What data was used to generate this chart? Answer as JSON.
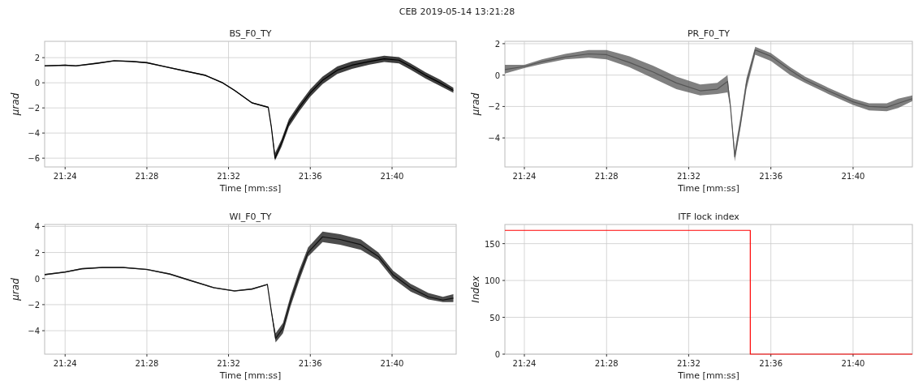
{
  "chart_data": [
    {
      "type": "line",
      "title": "BS_F0_TY",
      "xlabel": "Time [mm:ss]",
      "ylabel": "μrad",
      "annotations": [
        "CEB 2019-05-14 13:21:28"
      ],
      "grid": true,
      "xlim": [
        21.3833,
        21.719
      ],
      "xticks": [
        {
          "value": 21.4,
          "label": "21:24"
        },
        {
          "value": 21.4667,
          "label": "21:28"
        },
        {
          "value": 21.5333,
          "label": "21:32"
        },
        {
          "value": 21.6,
          "label": "21:36"
        },
        {
          "value": 21.6667,
          "label": "21:40"
        }
      ],
      "ylim": [
        -6.7,
        3.3
      ],
      "yticks": [
        -6,
        -4,
        -2,
        0,
        2
      ],
      "series": [
        {
          "color": "#000000",
          "x": [
            21.3833,
            21.4,
            21.4088,
            21.4257,
            21.44,
            21.4543,
            21.4667,
            21.4807,
            21.495,
            21.5142,
            21.5285,
            21.5382,
            21.5525,
            21.5657,
            21.5682,
            21.5712,
            21.5765,
            21.5825,
            21.5908,
            21.6,
            21.61,
            21.622,
            21.634,
            21.6483,
            21.6603,
            21.6723,
            21.6818,
            21.6938,
            21.7058,
            21.7167
          ],
          "values": [
            1.35,
            1.4,
            1.35,
            1.55,
            1.75,
            1.7,
            1.6,
            1.3,
            1.0,
            0.6,
            0.0,
            -0.6,
            -1.6,
            -1.95,
            -3.5,
            -6.0,
            -4.8,
            -3.2,
            -2.0,
            -0.8,
            0.2,
            1.0,
            1.4,
            1.7,
            1.9,
            1.8,
            1.3,
            0.6,
            0.0,
            -0.6
          ],
          "lower": [
            1.3,
            1.35,
            1.3,
            1.5,
            1.7,
            1.65,
            1.55,
            1.25,
            0.95,
            0.55,
            -0.05,
            -0.65,
            -1.65,
            -2.0,
            -3.6,
            -6.2,
            -5.1,
            -3.5,
            -2.3,
            -1.1,
            -0.1,
            0.7,
            1.1,
            1.45,
            1.65,
            1.55,
            1.05,
            0.35,
            -0.25,
            -0.8
          ],
          "upper": [
            1.4,
            1.45,
            1.4,
            1.6,
            1.8,
            1.75,
            1.65,
            1.35,
            1.05,
            0.65,
            0.05,
            -0.55,
            -1.55,
            -1.9,
            -3.4,
            -5.6,
            -4.5,
            -2.9,
            -1.7,
            -0.5,
            0.5,
            1.3,
            1.7,
            1.95,
            2.15,
            2.05,
            1.55,
            0.85,
            0.25,
            -0.4
          ]
        }
      ]
    },
    {
      "type": "line",
      "title": "PR_F0_TY",
      "xlabel": "Time [mm:ss]",
      "ylabel": "μrad",
      "grid": true,
      "xlim": [
        21.3842,
        21.7148
      ],
      "xticks": [
        {
          "value": 21.4,
          "label": "21:24"
        },
        {
          "value": 21.4667,
          "label": "21:28"
        },
        {
          "value": 21.5333,
          "label": "21:32"
        },
        {
          "value": 21.6,
          "label": "21:36"
        },
        {
          "value": 21.6667,
          "label": "21:40"
        }
      ],
      "ylim": [
        -5.85,
        2.15
      ],
      "yticks": [
        -4,
        -2,
        0,
        2
      ],
      "series": [
        {
          "color": "#555555",
          "x": [
            21.3842,
            21.4,
            21.4142,
            21.4332,
            21.4522,
            21.4667,
            21.4853,
            21.5043,
            21.5233,
            21.5427,
            21.5565,
            21.5648,
            21.5672,
            21.5707,
            21.5755,
            21.5802,
            21.5873,
            21.6,
            21.6158,
            21.6277,
            21.6465,
            21.6667,
            21.6797,
            21.694,
            21.7033,
            21.7148
          ],
          "values": [
            0.35,
            0.55,
            0.85,
            1.15,
            1.35,
            1.3,
            0.8,
            0.2,
            -0.5,
            -1.0,
            -0.9,
            -0.4,
            -2.0,
            -5.2,
            -3.0,
            -0.5,
            1.6,
            1.2,
            0.3,
            -0.3,
            -1.0,
            -1.7,
            -2.0,
            -2.05,
            -1.8,
            -1.5
          ],
          "lower": [
            0.1,
            0.45,
            0.7,
            1.0,
            1.1,
            1.0,
            0.5,
            -0.2,
            -0.9,
            -1.3,
            -1.2,
            -1.1,
            -2.1,
            -5.5,
            -3.3,
            -0.9,
            1.3,
            0.9,
            0.0,
            -0.5,
            -1.2,
            -1.9,
            -2.25,
            -2.3,
            -2.1,
            -1.65
          ],
          "upper": [
            0.65,
            0.65,
            1.0,
            1.35,
            1.6,
            1.6,
            1.2,
            0.6,
            -0.1,
            -0.6,
            -0.5,
            0.0,
            -1.9,
            -4.8,
            -2.6,
            -0.2,
            1.8,
            1.4,
            0.5,
            -0.1,
            -0.8,
            -1.5,
            -1.8,
            -1.8,
            -1.5,
            -1.3
          ]
        }
      ]
    },
    {
      "type": "line",
      "title": "WI_F0_TY",
      "xlabel": "Time [mm:ss]",
      "ylabel": "μrad",
      "grid": true,
      "xlim": [
        21.3833,
        21.719
      ],
      "xticks": [
        {
          "value": 21.4,
          "label": "21:24"
        },
        {
          "value": 21.4667,
          "label": "21:28"
        },
        {
          "value": 21.5333,
          "label": "21:32"
        },
        {
          "value": 21.6,
          "label": "21:36"
        },
        {
          "value": 21.6667,
          "label": "21:40"
        }
      ],
      "ylim": [
        -5.8,
        4.15
      ],
      "yticks": [
        -4,
        -2,
        0,
        2,
        4
      ],
      "series": [
        {
          "color": "#111111",
          "x": [
            21.3833,
            21.4,
            21.4137,
            21.4303,
            21.4472,
            21.4667,
            21.4853,
            21.5022,
            21.5213,
            21.5382,
            21.5525,
            21.565,
            21.5682,
            21.5717,
            21.5777,
            21.5837,
            21.5908,
            21.5982,
            21.61,
            21.6243,
            21.6412,
            21.6555,
            21.6675,
            21.6818,
            21.6963,
            21.7082,
            21.7167
          ],
          "values": [
            0.3,
            0.5,
            0.75,
            0.85,
            0.85,
            0.7,
            0.35,
            -0.15,
            -0.7,
            -0.95,
            -0.8,
            -0.45,
            -2.5,
            -4.6,
            -3.8,
            -1.8,
            0.2,
            2.0,
            3.2,
            3.0,
            2.6,
            1.7,
            0.3,
            -0.7,
            -1.4,
            -1.65,
            -1.5
          ],
          "lower": [
            0.25,
            0.45,
            0.7,
            0.8,
            0.8,
            0.65,
            0.3,
            -0.2,
            -0.75,
            -1.0,
            -0.85,
            -0.5,
            -2.6,
            -4.9,
            -4.2,
            -2.2,
            -0.2,
            1.7,
            2.8,
            2.6,
            2.2,
            1.4,
            0.0,
            -1.0,
            -1.6,
            -1.8,
            -1.8
          ],
          "upper": [
            0.35,
            0.55,
            0.8,
            0.9,
            0.9,
            0.75,
            0.4,
            -0.1,
            -0.65,
            -0.9,
            -0.75,
            -0.4,
            -2.4,
            -4.2,
            -3.4,
            -1.4,
            0.6,
            2.4,
            3.6,
            3.4,
            3.0,
            2.0,
            0.6,
            -0.4,
            -1.1,
            -1.4,
            -1.2
          ]
        }
      ]
    },
    {
      "type": "step",
      "title": "ITF lock index",
      "xlabel": "Time [mm:ss]",
      "ylabel": "Index",
      "grid": true,
      "xlim": [
        21.3842,
        21.7148
      ],
      "xticks": [
        {
          "value": 21.4,
          "label": "21:24"
        },
        {
          "value": 21.4667,
          "label": "21:28"
        },
        {
          "value": 21.5333,
          "label": "21:32"
        },
        {
          "value": 21.6,
          "label": "21:36"
        },
        {
          "value": 21.6667,
          "label": "21:40"
        }
      ],
      "ylim": [
        0,
        176
      ],
      "yticks": [
        0,
        50,
        100,
        150
      ],
      "series": [
        {
          "color": "#ff0000",
          "x": [
            21.3842,
            21.5833,
            21.7148
          ],
          "values": [
            168,
            0,
            0
          ]
        }
      ]
    }
  ]
}
